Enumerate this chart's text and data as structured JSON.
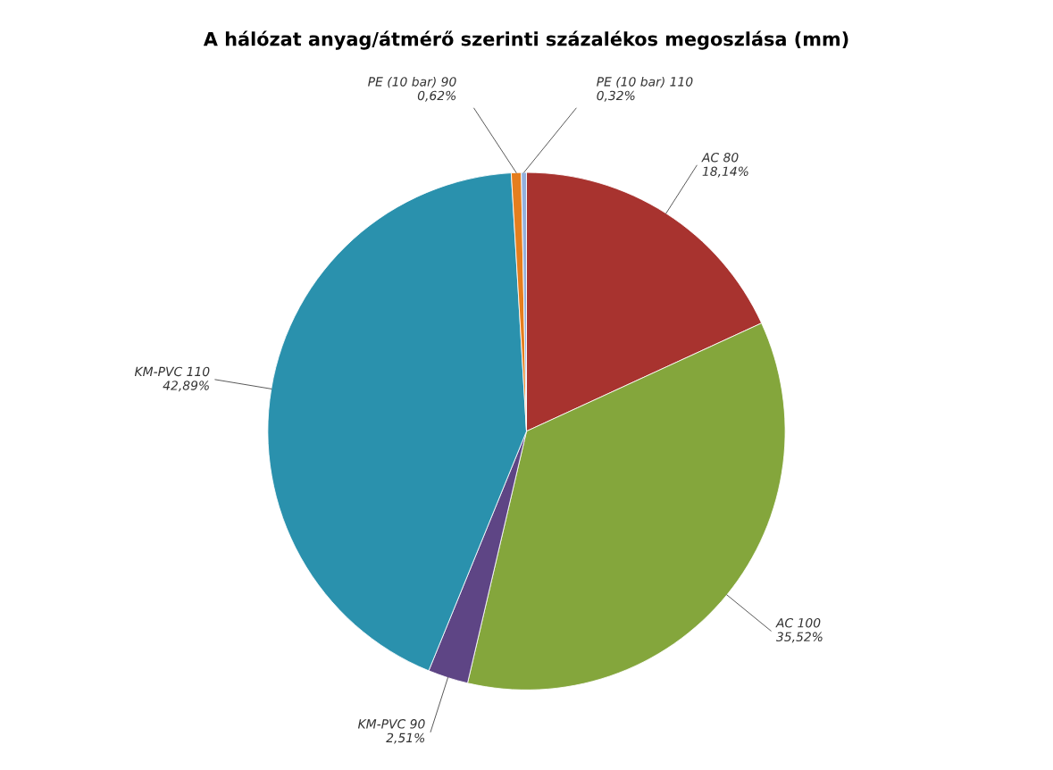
{
  "chart_data": {
    "type": "pie",
    "title": "A hálózat anyag/átmérő szerinti százalékos megoszlása (mm)",
    "categories": [
      "AC 80",
      "AC 100",
      "KM-PVC 90",
      "KM-PVC 110",
      "PE (10 bar) 90",
      "PE (10 bar) 110"
    ],
    "values": [
      18.14,
      35.52,
      2.51,
      42.89,
      0.62,
      0.32
    ],
    "value_labels": [
      "18,14%",
      "35,52%",
      "2,51%",
      "42,89%",
      "0,62%",
      "0,32%"
    ],
    "colors": [
      "#a8332f",
      "#84a63c",
      "#5e4585",
      "#2a91ad",
      "#e57e1e",
      "#93b0dd"
    ]
  }
}
